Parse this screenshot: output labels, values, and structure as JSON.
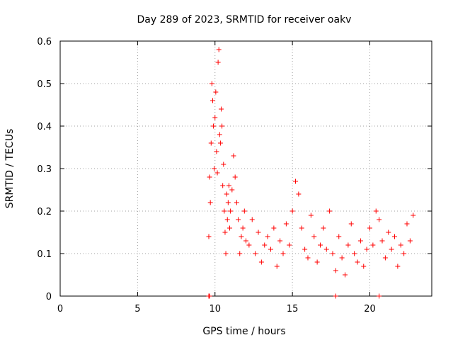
{
  "chart_data": {
    "type": "scatter",
    "title": "Day 289 of 2023, SRMTID for receiver oakv",
    "xlabel": "GPS time / hours",
    "ylabel": "SRMTID / TECUs",
    "xlim": [
      0,
      24
    ],
    "ylim": [
      0,
      0.6
    ],
    "xticks": [
      0,
      5,
      10,
      15,
      20
    ],
    "yticks": [
      0,
      0.1,
      0.2,
      0.3,
      0.4,
      0.5,
      0.6
    ],
    "grid": true,
    "marker": "plus",
    "color": "#ff0000",
    "series": [
      {
        "name": "SRMTID",
        "x": [
          9.6,
          9.65,
          9.7,
          9.75,
          9.8,
          9.85,
          9.9,
          9.95,
          10.0,
          10.05,
          10.1,
          10.15,
          10.2,
          10.25,
          10.3,
          10.35,
          10.4,
          10.45,
          10.5,
          10.55,
          10.6,
          10.65,
          10.7,
          10.75,
          10.8,
          10.85,
          10.9,
          10.95,
          11.0,
          11.1,
          11.2,
          11.3,
          11.4,
          11.5,
          11.6,
          11.7,
          11.8,
          11.9,
          12.0,
          12.2,
          12.4,
          12.6,
          12.8,
          13.0,
          13.2,
          13.4,
          13.6,
          13.8,
          14.0,
          14.2,
          14.4,
          14.6,
          14.8,
          15.0,
          15.2,
          15.4,
          15.6,
          15.8,
          16.0,
          16.2,
          16.4,
          16.6,
          16.8,
          17.0,
          17.2,
          17.4,
          17.6,
          17.8,
          18.0,
          18.2,
          18.4,
          18.6,
          18.8,
          19.0,
          19.2,
          19.4,
          19.6,
          19.8,
          20.0,
          20.2,
          20.4,
          20.6,
          20.8,
          21.0,
          21.2,
          21.4,
          21.6,
          21.8,
          22.0,
          22.2,
          22.4,
          22.6,
          22.8
        ],
        "y": [
          0.14,
          0.28,
          0.22,
          0.36,
          0.5,
          0.46,
          0.4,
          0.3,
          0.42,
          0.48,
          0.34,
          0.29,
          0.55,
          0.58,
          0.38,
          0.36,
          0.44,
          0.4,
          0.26,
          0.31,
          0.2,
          0.15,
          0.1,
          0.24,
          0.18,
          0.22,
          0.26,
          0.16,
          0.2,
          0.25,
          0.33,
          0.28,
          0.22,
          0.18,
          0.1,
          0.14,
          0.16,
          0.2,
          0.13,
          0.12,
          0.18,
          0.1,
          0.15,
          0.08,
          0.12,
          0.14,
          0.11,
          0.16,
          0.07,
          0.13,
          0.1,
          0.17,
          0.12,
          0.2,
          0.27,
          0.24,
          0.16,
          0.11,
          0.09,
          0.19,
          0.14,
          0.08,
          0.12,
          0.16,
          0.11,
          0.2,
          0.1,
          0.06,
          0.14,
          0.09,
          0.05,
          0.12,
          0.17,
          0.1,
          0.08,
          0.13,
          0.07,
          0.11,
          0.16,
          0.12,
          0.2,
          0.18,
          0.13,
          0.09,
          0.15,
          0.11,
          0.14,
          0.07,
          0.12,
          0.1,
          0.17,
          0.13,
          0.19
        ],
        "zeros_x": [
          9.6,
          9.65,
          17.8,
          20.6
        ]
      }
    ]
  }
}
